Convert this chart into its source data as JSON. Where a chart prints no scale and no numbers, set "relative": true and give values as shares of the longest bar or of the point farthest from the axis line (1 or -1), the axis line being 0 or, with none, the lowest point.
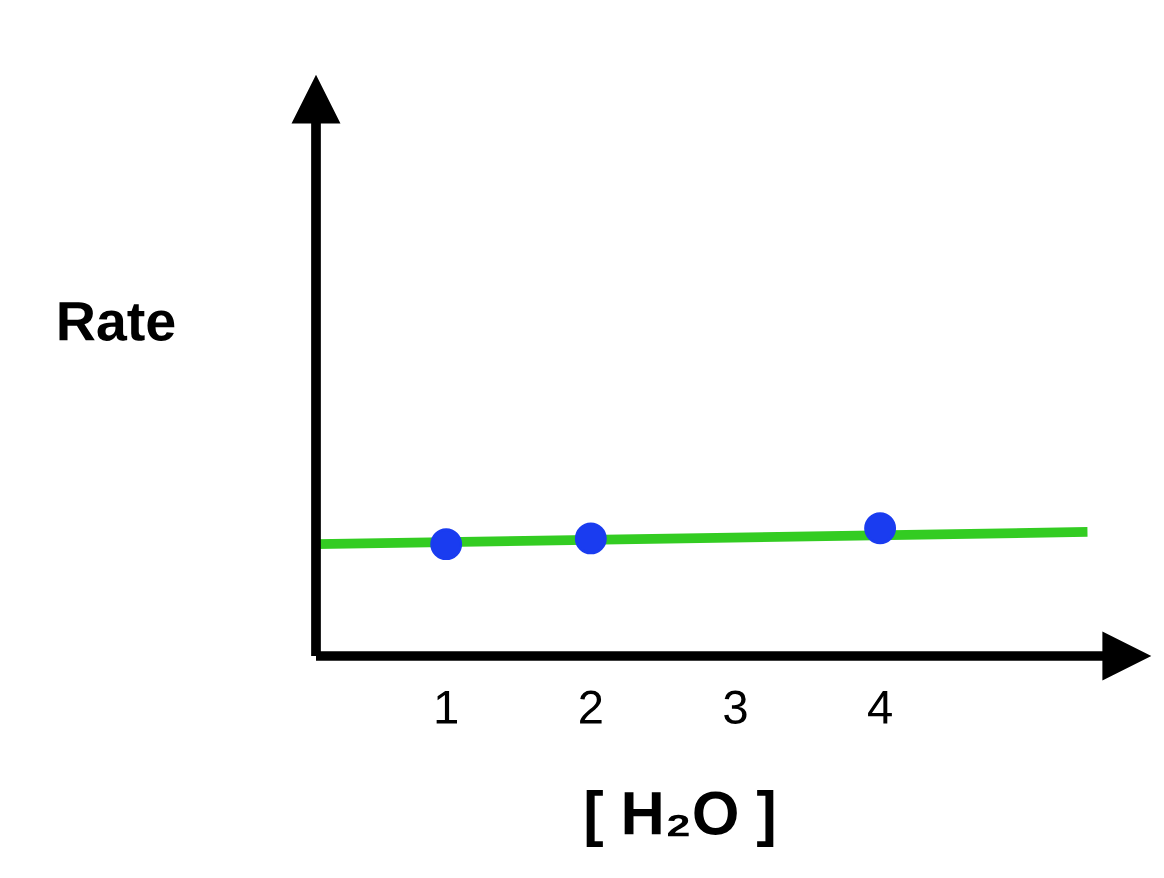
{
  "chart_data": {
    "type": "scatter",
    "ylabel": "Rate",
    "xlabel": "[ H₂O ]",
    "relative": true,
    "xlim": [
      0.1,
      5.7
    ],
    "xticks": [
      1,
      2,
      3,
      4
    ],
    "grid": false,
    "series": [
      {
        "type": "line",
        "color": "#33cc22",
        "x": [
          0.1,
          5.4
        ],
        "values": [
          0.875,
          0.97
        ],
        "marker": "none",
        "line_style": "solid"
      },
      {
        "color": "#1a3cf0",
        "x": [
          1,
          2,
          4
        ],
        "values": [
          0.875,
          0.92,
          1
        ],
        "marker": "circle"
      }
    ]
  }
}
